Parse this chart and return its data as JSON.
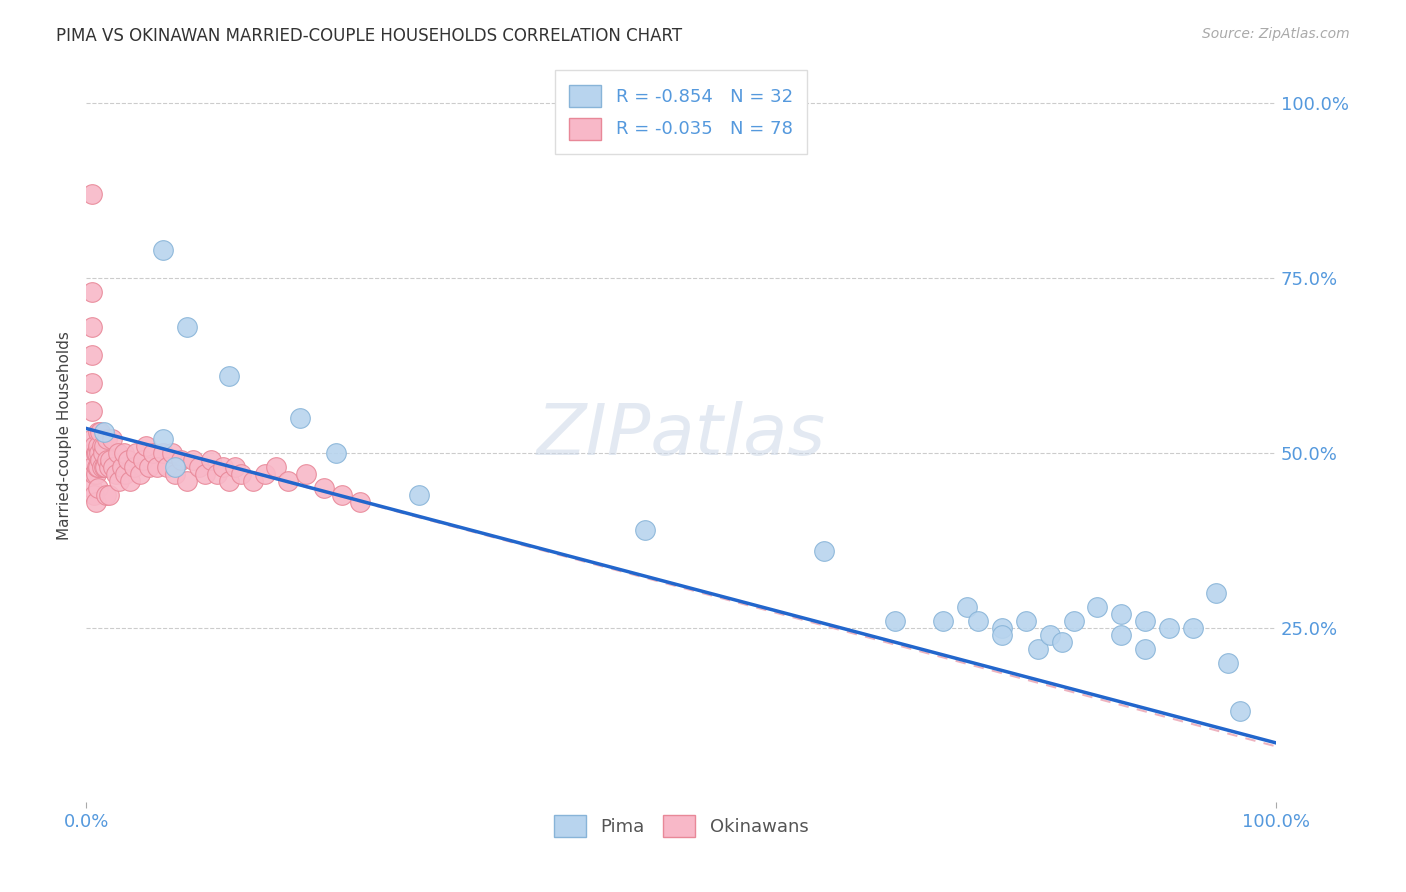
{
  "title": "PIMA VS OKINAWAN MARRIED-COUPLE HOUSEHOLDS CORRELATION CHART",
  "source_text": "Source: ZipAtlas.com",
  "ylabel": "Married-couple Households",
  "xlim": [
    0,
    1
  ],
  "ylim": [
    0,
    1.05
  ],
  "xticks": [
    0.0,
    1.0
  ],
  "xticklabels": [
    "0.0%",
    "100.0%"
  ],
  "yticks_right": [
    0.25,
    0.5,
    0.75,
    1.0
  ],
  "yticklabels_right": [
    "25.0%",
    "50.0%",
    "75.0%",
    "100.0%"
  ],
  "pima_color": "#b8d4ee",
  "pima_edge_color": "#88b4d8",
  "okinawan_color": "#f8b8c8",
  "okinawan_edge_color": "#e88898",
  "pima_line_color": "#2266cc",
  "okinawan_line_color": "#e89aaa",
  "legend_r_pima": "R = -0.854",
  "legend_n_pima": "N = 32",
  "legend_r_okinawan": "R = -0.035",
  "legend_n_okinawan": "N = 78",
  "background_color": "#ffffff",
  "grid_color": "#cccccc",
  "tick_color": "#5599dd",
  "title_color": "#333333",
  "pima_x": [
    0.015,
    0.065,
    0.085,
    0.065,
    0.075,
    0.12,
    0.18,
    0.21,
    0.28,
    0.47,
    0.62,
    0.68,
    0.72,
    0.74,
    0.75,
    0.77,
    0.77,
    0.79,
    0.8,
    0.81,
    0.82,
    0.83,
    0.85,
    0.87,
    0.87,
    0.89,
    0.89,
    0.91,
    0.93,
    0.95,
    0.96,
    0.97
  ],
  "pima_y": [
    0.53,
    0.79,
    0.68,
    0.52,
    0.48,
    0.61,
    0.55,
    0.5,
    0.44,
    0.39,
    0.36,
    0.26,
    0.26,
    0.28,
    0.26,
    0.25,
    0.24,
    0.26,
    0.22,
    0.24,
    0.23,
    0.26,
    0.28,
    0.27,
    0.24,
    0.22,
    0.26,
    0.25,
    0.25,
    0.3,
    0.2,
    0.13
  ],
  "okinawan_x": [
    0.005,
    0.005,
    0.005,
    0.005,
    0.005,
    0.005,
    0.005,
    0.005,
    0.005,
    0.005,
    0.007,
    0.007,
    0.007,
    0.008,
    0.008,
    0.008,
    0.009,
    0.009,
    0.01,
    0.01,
    0.01,
    0.01,
    0.011,
    0.012,
    0.012,
    0.013,
    0.013,
    0.014,
    0.015,
    0.015,
    0.016,
    0.017,
    0.018,
    0.018,
    0.019,
    0.019,
    0.02,
    0.022,
    0.023,
    0.025,
    0.027,
    0.028,
    0.03,
    0.032,
    0.033,
    0.035,
    0.037,
    0.04,
    0.042,
    0.045,
    0.048,
    0.05,
    0.053,
    0.056,
    0.06,
    0.065,
    0.068,
    0.072,
    0.075,
    0.08,
    0.085,
    0.09,
    0.095,
    0.1,
    0.105,
    0.11,
    0.115,
    0.12,
    0.125,
    0.13,
    0.14,
    0.15,
    0.16,
    0.17,
    0.185,
    0.2,
    0.215,
    0.23
  ],
  "okinawan_y": [
    0.87,
    0.73,
    0.68,
    0.64,
    0.6,
    0.56,
    0.52,
    0.5,
    0.48,
    0.45,
    0.51,
    0.47,
    0.44,
    0.5,
    0.47,
    0.43,
    0.5,
    0.48,
    0.53,
    0.51,
    0.48,
    0.45,
    0.5,
    0.53,
    0.49,
    0.51,
    0.48,
    0.5,
    0.51,
    0.48,
    0.48,
    0.44,
    0.52,
    0.49,
    0.48,
    0.44,
    0.49,
    0.52,
    0.48,
    0.47,
    0.5,
    0.46,
    0.48,
    0.5,
    0.47,
    0.49,
    0.46,
    0.48,
    0.5,
    0.47,
    0.49,
    0.51,
    0.48,
    0.5,
    0.48,
    0.5,
    0.48,
    0.5,
    0.47,
    0.49,
    0.46,
    0.49,
    0.48,
    0.47,
    0.49,
    0.47,
    0.48,
    0.46,
    0.48,
    0.47,
    0.46,
    0.47,
    0.48,
    0.46,
    0.47,
    0.45,
    0.44,
    0.43
  ],
  "pima_trendline_x": [
    0.0,
    1.0
  ],
  "pima_trendline_y": [
    0.535,
    0.085
  ],
  "okinawan_trendline_x": [
    0.0,
    1.0
  ],
  "okinawan_trendline_y": [
    0.535,
    0.08
  ]
}
